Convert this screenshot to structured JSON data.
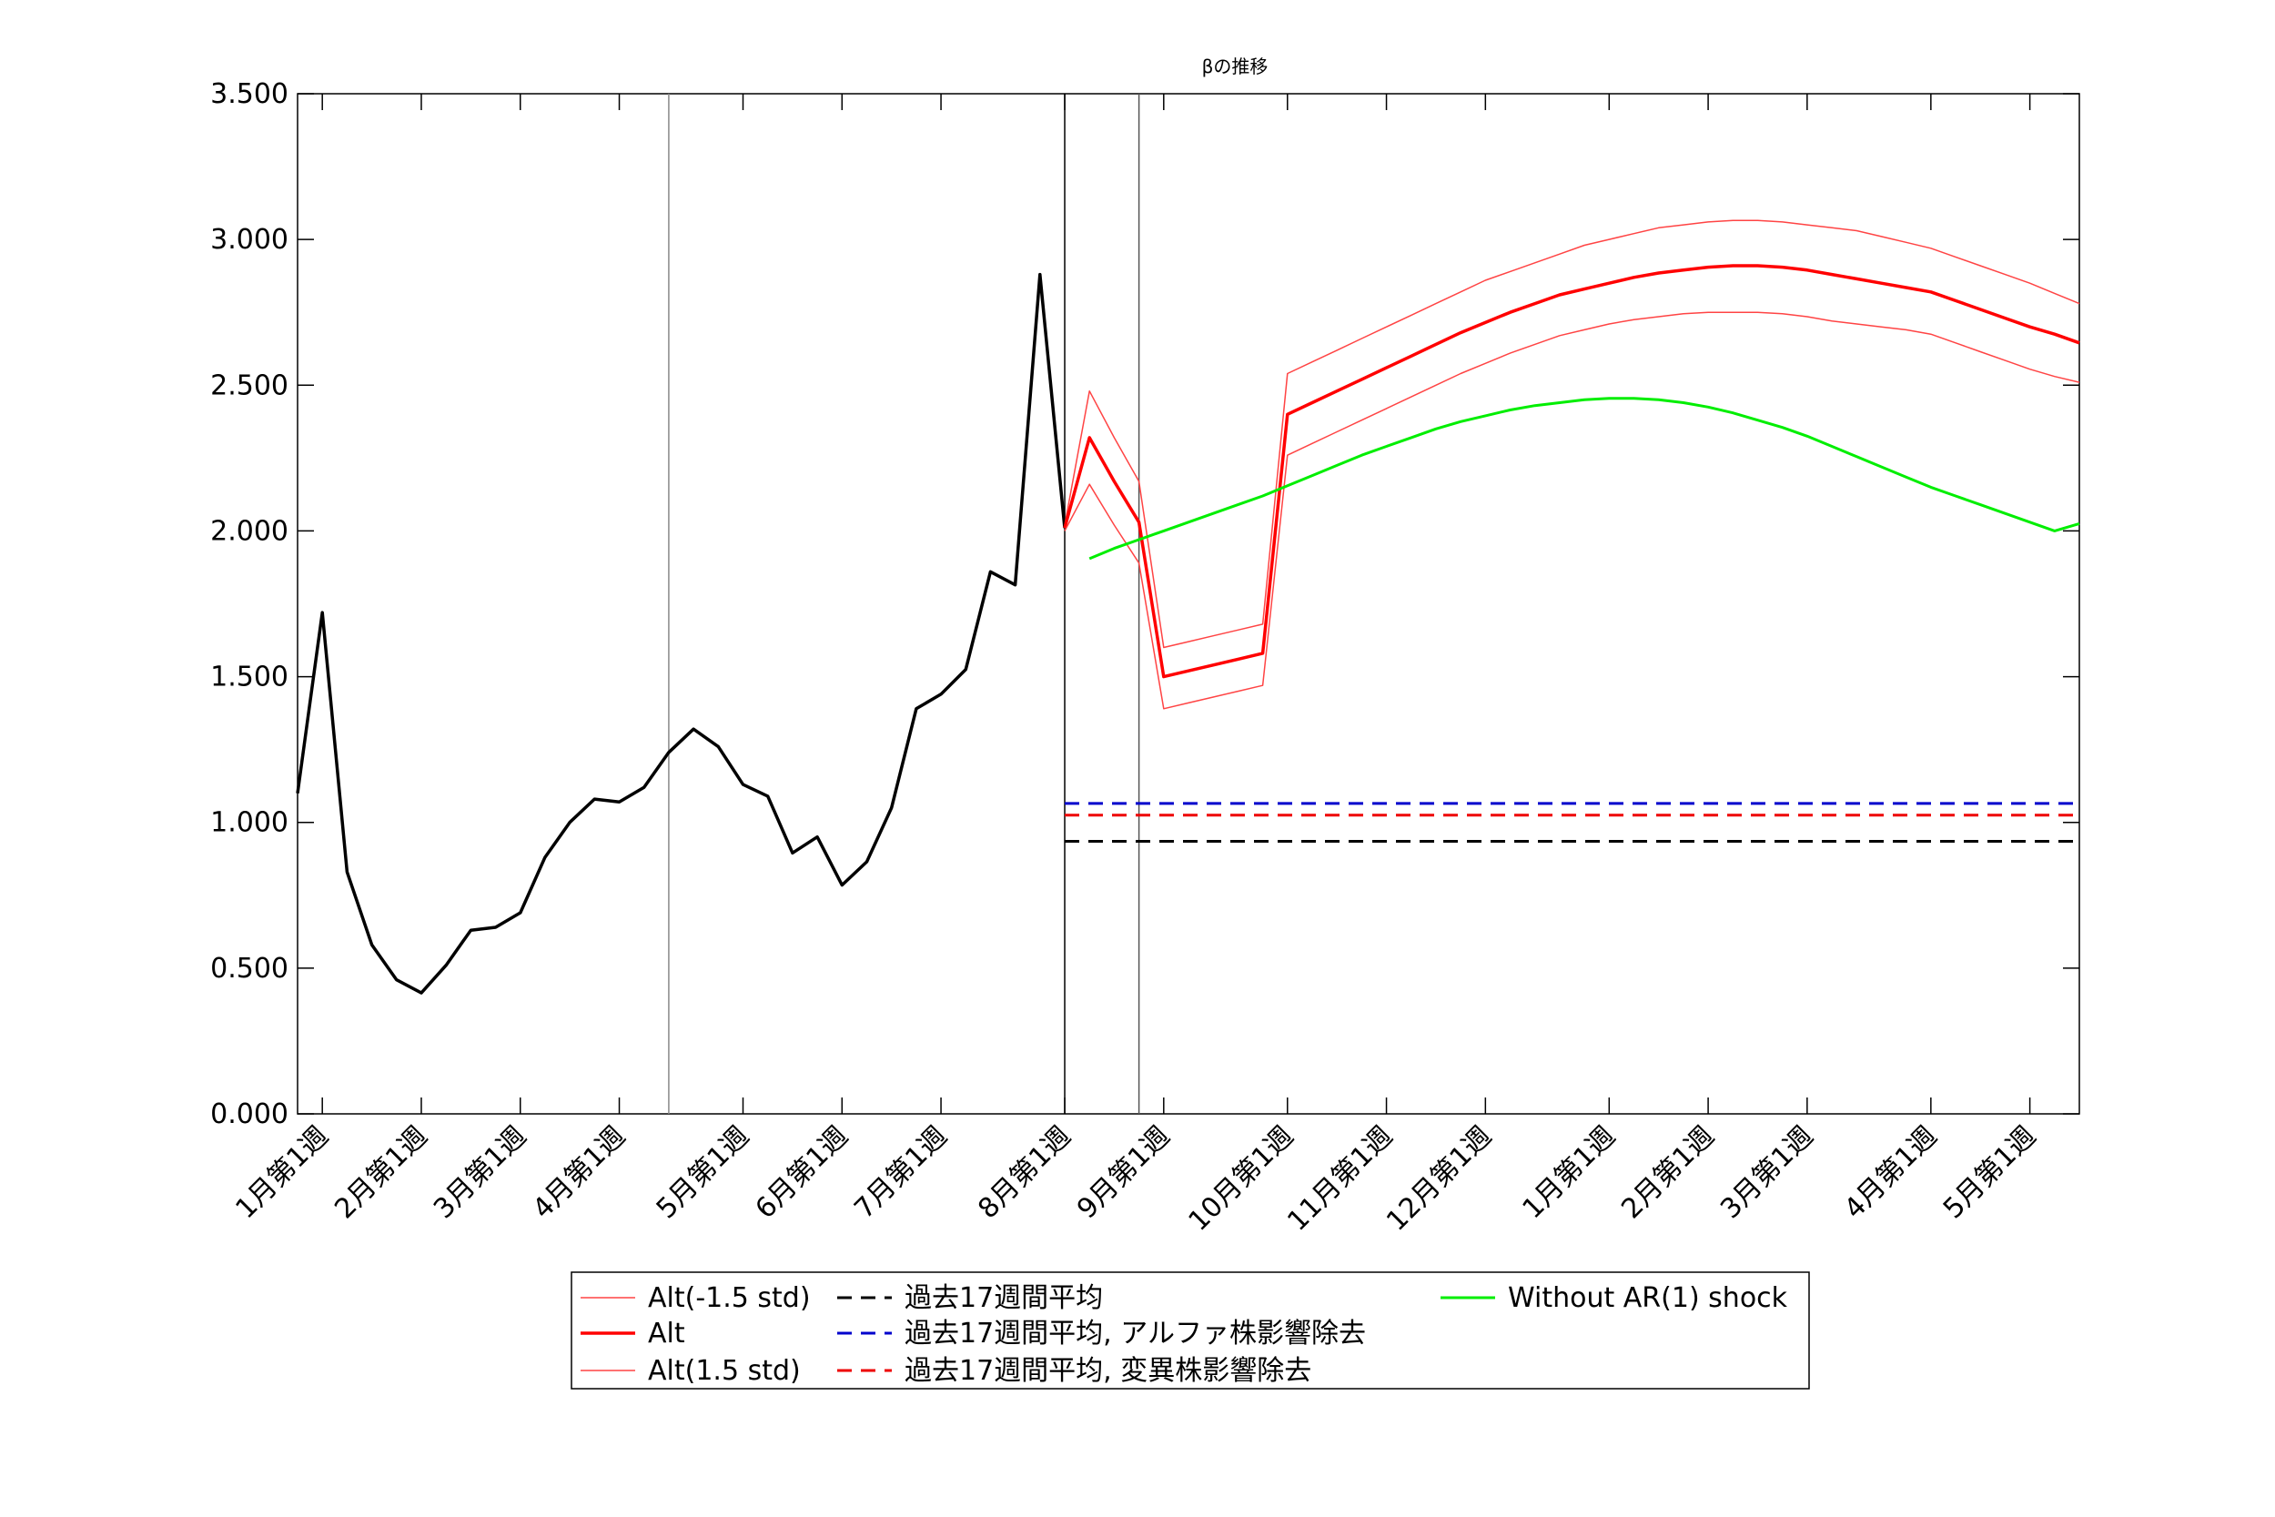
{
  "chart_data": {
    "type": "line",
    "title": "βの推移",
    "xlabel": "",
    "ylabel": "",
    "ylim": [
      0,
      3.5
    ],
    "yticks": [
      "0.000",
      "0.500",
      "1.000",
      "1.500",
      "2.000",
      "2.500",
      "3.000",
      "3.500"
    ],
    "ytick_values": [
      0,
      0.5,
      1.0,
      1.5,
      2.0,
      2.5,
      3.0,
      3.5
    ],
    "xlim": [
      0,
      72
    ],
    "xticks": [
      {
        "x": 1,
        "label": "1月第1週"
      },
      {
        "x": 5,
        "label": "2月第1週"
      },
      {
        "x": 9,
        "label": "3月第1週"
      },
      {
        "x": 13,
        "label": "4月第1週"
      },
      {
        "x": 18,
        "label": "5月第1週"
      },
      {
        "x": 22,
        "label": "6月第1週"
      },
      {
        "x": 26,
        "label": "7月第1週"
      },
      {
        "x": 31,
        "label": "8月第1週"
      },
      {
        "x": 35,
        "label": "9月第1週"
      },
      {
        "x": 40,
        "label": "10月第1週"
      },
      {
        "x": 44,
        "label": "11月第1週"
      },
      {
        "x": 48,
        "label": "12月第1週"
      },
      {
        "x": 53,
        "label": "1月第1週"
      },
      {
        "x": 57,
        "label": "2月第1週"
      },
      {
        "x": 61,
        "label": "3月第1週"
      },
      {
        "x": 66,
        "label": "4月第1週"
      },
      {
        "x": 70,
        "label": "5月第1週"
      }
    ],
    "vlines": [
      {
        "x": 15,
        "color": "#888888"
      },
      {
        "x": 31,
        "color": "#000000"
      },
      {
        "x": 34,
        "color": "#555555"
      }
    ],
    "grid": false,
    "legend_position": "bottom-center",
    "series": [
      {
        "key": "history",
        "color": "#000000",
        "style": "solid",
        "width": 3.5,
        "x": [
          0,
          1,
          2,
          3,
          4,
          5,
          6,
          7,
          8,
          9,
          10,
          11,
          12,
          13,
          14,
          15,
          16,
          17,
          18,
          19,
          20,
          21,
          22,
          23,
          24,
          25,
          26,
          27,
          28,
          29,
          30,
          31
        ],
        "values": [
          1.1,
          1.72,
          0.83,
          0.58,
          0.46,
          0.415,
          0.51,
          0.63,
          0.64,
          0.69,
          0.88,
          1.0,
          1.08,
          1.07,
          1.12,
          1.24,
          1.32,
          1.26,
          1.13,
          1.09,
          0.895,
          0.95,
          0.785,
          0.865,
          1.05,
          1.39,
          1.44,
          1.525,
          1.86,
          1.815,
          2.88,
          2.01
        ]
      },
      {
        "key": "alt_minus",
        "name": "Alt(-1.5 std)",
        "color": "#ff4444",
        "style": "solid",
        "width": 1.5,
        "x": [
          31,
          32,
          33,
          34,
          35,
          36,
          37,
          38,
          39,
          40,
          41,
          42,
          43,
          44,
          45,
          46,
          47,
          48,
          49,
          50,
          51,
          52,
          53,
          54,
          55,
          56,
          57,
          58,
          59,
          60,
          61,
          62,
          63,
          64,
          65,
          66,
          67,
          68,
          69,
          70,
          71,
          72
        ],
        "values": [
          2.02,
          2.48,
          2.32,
          2.17,
          1.6,
          1.62,
          1.64,
          1.66,
          1.68,
          2.54,
          2.58,
          2.62,
          2.66,
          2.7,
          2.74,
          2.78,
          2.82,
          2.86,
          2.89,
          2.92,
          2.95,
          2.98,
          3.0,
          3.02,
          3.04,
          3.05,
          3.06,
          3.065,
          3.065,
          3.06,
          3.05,
          3.04,
          3.03,
          3.01,
          2.99,
          2.97,
          2.94,
          2.91,
          2.88,
          2.85,
          2.815,
          2.78
        ]
      },
      {
        "key": "alt",
        "name": "Alt",
        "color": "#ff0000",
        "style": "solid",
        "width": 3.5,
        "x": [
          31,
          32,
          33,
          34,
          35,
          36,
          37,
          38,
          39,
          40,
          41,
          42,
          43,
          44,
          45,
          46,
          47,
          48,
          49,
          50,
          51,
          52,
          53,
          54,
          55,
          56,
          57,
          58,
          59,
          60,
          61,
          62,
          63,
          64,
          65,
          66,
          67,
          68,
          69,
          70,
          71,
          72
        ],
        "values": [
          2.01,
          2.32,
          2.17,
          2.03,
          1.5,
          1.52,
          1.54,
          1.56,
          1.58,
          2.4,
          2.44,
          2.48,
          2.52,
          2.56,
          2.6,
          2.64,
          2.68,
          2.715,
          2.75,
          2.78,
          2.81,
          2.83,
          2.85,
          2.87,
          2.885,
          2.895,
          2.905,
          2.91,
          2.91,
          2.905,
          2.895,
          2.88,
          2.865,
          2.85,
          2.835,
          2.82,
          2.79,
          2.76,
          2.73,
          2.7,
          2.675,
          2.645
        ]
      },
      {
        "key": "alt_plus",
        "name": "Alt(1.5 std)",
        "color": "#ff4444",
        "style": "solid",
        "width": 1.5,
        "x": [
          31,
          32,
          33,
          34,
          35,
          36,
          37,
          38,
          39,
          40,
          41,
          42,
          43,
          44,
          45,
          46,
          47,
          48,
          49,
          50,
          51,
          52,
          53,
          54,
          55,
          56,
          57,
          58,
          59,
          60,
          61,
          62,
          63,
          64,
          65,
          66,
          67,
          68,
          69,
          70,
          71,
          72
        ],
        "values": [
          2.0,
          2.16,
          2.02,
          1.89,
          1.39,
          1.41,
          1.43,
          1.45,
          1.47,
          2.26,
          2.3,
          2.34,
          2.38,
          2.42,
          2.46,
          2.5,
          2.54,
          2.575,
          2.61,
          2.64,
          2.67,
          2.69,
          2.71,
          2.725,
          2.735,
          2.745,
          2.75,
          2.75,
          2.75,
          2.745,
          2.735,
          2.72,
          2.71,
          2.7,
          2.69,
          2.675,
          2.645,
          2.615,
          2.585,
          2.555,
          2.53,
          2.51
        ]
      },
      {
        "key": "avg17",
        "name": "過去17週間平均",
        "color": "#000000",
        "style": "dashed",
        "width": 3,
        "x": [
          31,
          72
        ],
        "values": [
          0.935,
          0.935
        ]
      },
      {
        "key": "avg17_alpha",
        "name": "過去17週間平均, アルファ株影響除去",
        "color": "#0000cc",
        "style": "dashed",
        "width": 3,
        "x": [
          31,
          72
        ],
        "values": [
          1.065,
          1.065
        ]
      },
      {
        "key": "avg17_variant",
        "name": "過去17週間平均, 変異株影響除去",
        "color": "#ee0000",
        "style": "dashed",
        "width": 3,
        "x": [
          31,
          72
        ],
        "values": [
          1.025,
          1.025
        ]
      },
      {
        "key": "without_ar",
        "name": "Without AR(1) shock",
        "color": "#00ee00",
        "style": "solid",
        "width": 3,
        "x": [
          32,
          33,
          34,
          35,
          36,
          37,
          38,
          39,
          40,
          41,
          42,
          43,
          44,
          45,
          46,
          47,
          48,
          49,
          50,
          51,
          52,
          53,
          54,
          55,
          56,
          57,
          58,
          59,
          60,
          61,
          62,
          63,
          64,
          65,
          66,
          67,
          68,
          69,
          70,
          71,
          72
        ],
        "values": [
          1.905,
          1.94,
          1.97,
          2.0,
          2.03,
          2.06,
          2.09,
          2.12,
          2.155,
          2.19,
          2.225,
          2.26,
          2.29,
          2.32,
          2.35,
          2.375,
          2.395,
          2.415,
          2.43,
          2.44,
          2.45,
          2.455,
          2.455,
          2.45,
          2.44,
          2.425,
          2.405,
          2.38,
          2.355,
          2.325,
          2.29,
          2.255,
          2.22,
          2.185,
          2.15,
          2.12,
          2.09,
          2.06,
          2.03,
          2.0,
          2.025
        ]
      }
    ],
    "legend": {
      "columns": [
        [
          "Alt(-1.5 std)",
          "Alt",
          "Alt(1.5 std)"
        ],
        [
          "過去17週間平均",
          "過去17週間平均, アルファ株影響除去",
          "過去17週間平均, 変異株影響除去"
        ],
        [
          "Without AR(1) shock"
        ]
      ]
    }
  }
}
